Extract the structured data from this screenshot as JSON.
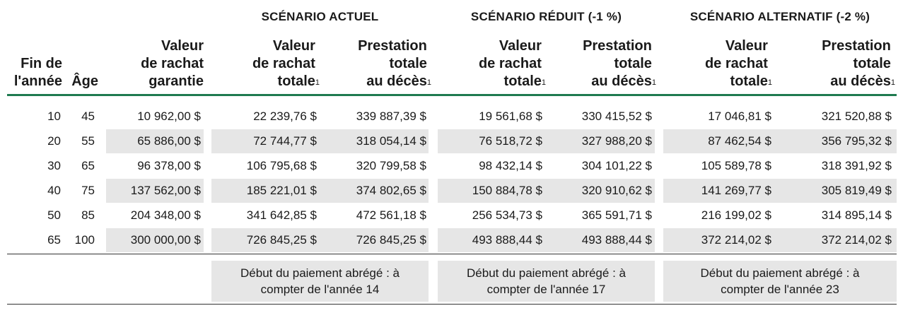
{
  "scenarios": [
    {
      "title": "SCÉNARIO ACTUEL",
      "note": "Début du paiement abrégé : à compter de l'année 14"
    },
    {
      "title": "SCÉNARIO RÉDUIT (-1 %)",
      "note": "Début du paiement abrégé : à compter de l'année 17"
    },
    {
      "title": "SCÉNARIO ALTERNATIF (-2 %)",
      "note": "Début du paiement abrégé : à compter de l'année 23"
    }
  ],
  "headers": {
    "fin_annee": "Fin de\nl'année",
    "age": "Âge",
    "valeur_garantie": "Valeur\nde rachat\ngarantie",
    "valeur_totale": "Valeur\nde rachat\ntotale",
    "prestation": "Prestation\ntotale\nau décès",
    "footnote": "1"
  },
  "rows": [
    {
      "annee": "10",
      "age": "45",
      "garantie": "10 962,00 $",
      "vals": [
        "22 239,76 $",
        "339 887,39 $",
        "19 561,68 $",
        "330 415,52 $",
        "17 046,81 $",
        "321 520,88 $"
      ]
    },
    {
      "annee": "20",
      "age": "55",
      "garantie": "65 886,00 $",
      "vals": [
        "72 744,77 $",
        "318 054,14 $",
        "76 518,72 $",
        "327 988,20 $",
        "87 462,54 $",
        "356 795,32 $"
      ]
    },
    {
      "annee": "30",
      "age": "65",
      "garantie": "96 378,00 $",
      "vals": [
        "106 795,68 $",
        "320 799,58 $",
        "98 432,14 $",
        "304 101,22 $",
        "105 589,78 $",
        "318 391,92 $"
      ]
    },
    {
      "annee": "40",
      "age": "75",
      "garantie": "137 562,00 $",
      "vals": [
        "185 221,01 $",
        "374 802,65 $",
        "150 884,78 $",
        "320 910,62 $",
        "141 269,77 $",
        "305 819,49 $"
      ]
    },
    {
      "annee": "50",
      "age": "85",
      "garantie": "204 348,00 $",
      "vals": [
        "341 642,85 $",
        "472 561,18 $",
        "256 534,73 $",
        "365 591,71 $",
        "216 199,02 $",
        "314 895,14 $"
      ]
    },
    {
      "annee": "65",
      "age": "100",
      "garantie": "300 000,00 $",
      "vals": [
        "726 845,25 $",
        "726 845,25 $",
        "493 888,44 $",
        "493 888,44 $",
        "372 214,02 $",
        "372 214,02 $"
      ]
    }
  ],
  "colors": {
    "accent": "#1f7a4f",
    "band": "#e6e6e6"
  }
}
